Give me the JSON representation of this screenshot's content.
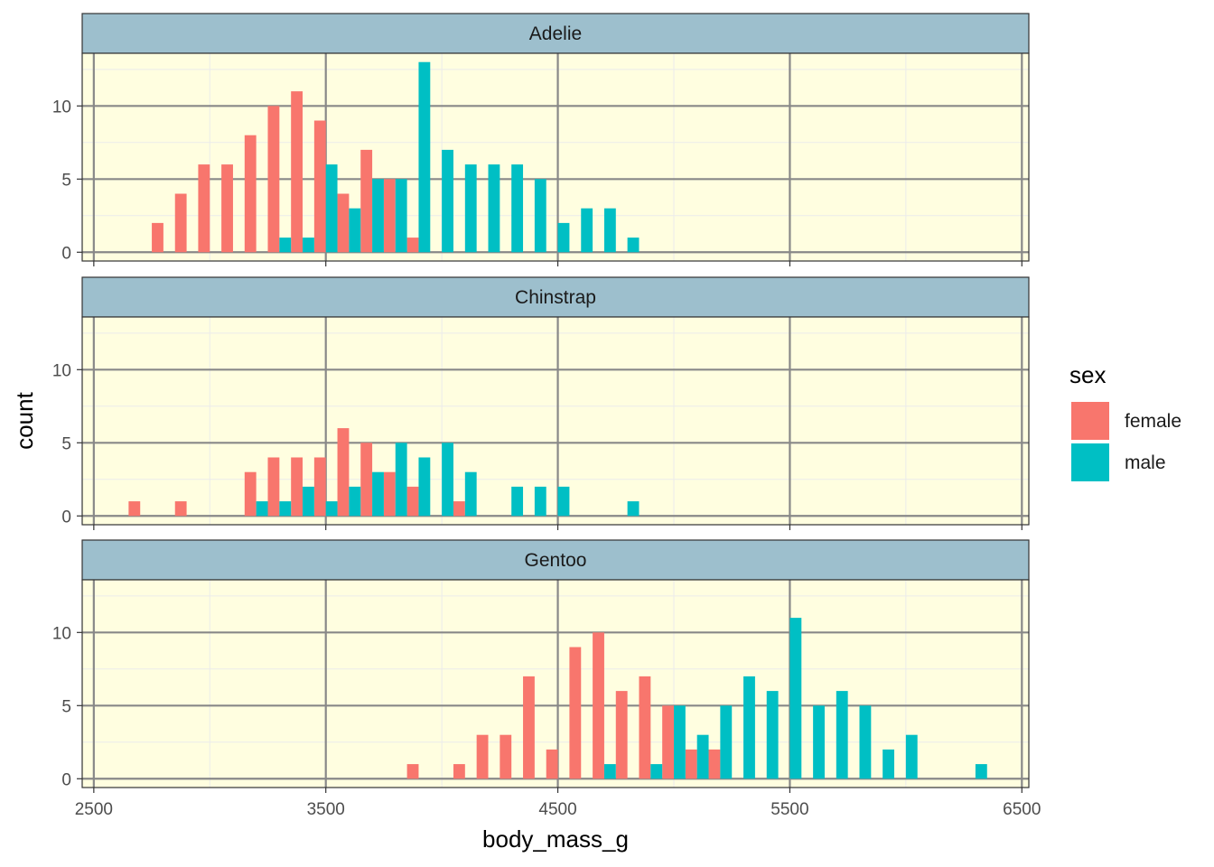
{
  "chart_data": {
    "type": "bar",
    "subtype": "faceted histogram (dodged)",
    "xlabel": "body_mass_g",
    "ylabel": "count",
    "xlim": [
      2450,
      6530
    ],
    "ylim": [
      -0.6,
      13.6
    ],
    "x_ticks": [
      2500,
      3500,
      4500,
      5500,
      6500
    ],
    "x_tick_labels": [
      "2500",
      "3500",
      "4500",
      "5500",
      "6500"
    ],
    "y_ticks": [
      0,
      5,
      10
    ],
    "y_tick_labels": [
      "0",
      "5",
      "10"
    ],
    "bin_width": 100,
    "grid": true,
    "panel_background": "#FFFEE0",
    "strip_background": "#9DBFCD",
    "legend": {
      "title": "sex",
      "position": "right",
      "entries": [
        {
          "name": "female",
          "color": "#F8766D"
        },
        {
          "name": "male",
          "color": "#00BFC4"
        }
      ]
    },
    "facets": [
      {
        "label": "Adelie",
        "series": [
          {
            "name": "female",
            "x": [
              2800,
              2900,
              3000,
              3100,
              3200,
              3300,
              3400,
              3500,
              3600,
              3700,
              3800,
              3900
            ],
            "values": [
              2,
              4,
              6,
              6,
              8,
              10,
              11,
              9,
              4,
              7,
              5,
              1
            ]
          },
          {
            "name": "male",
            "x": [
              3300,
              3400,
              3500,
              3600,
              3700,
              3800,
              3900,
              4000,
              4100,
              4200,
              4300,
              4400,
              4500,
              4600,
              4700,
              4800
            ],
            "values": [
              1,
              1,
              6,
              3,
              5,
              5,
              13,
              7,
              6,
              6,
              6,
              5,
              2,
              3,
              3,
              1
            ]
          }
        ]
      },
      {
        "label": "Chinstrap",
        "series": [
          {
            "name": "female",
            "x": [
              2700,
              2900,
              3200,
              3300,
              3400,
              3500,
              3600,
              3700,
              3800,
              3900,
              4100
            ],
            "values": [
              1,
              1,
              3,
              4,
              4,
              4,
              6,
              5,
              3,
              2,
              1
            ]
          },
          {
            "name": "male",
            "x": [
              3200,
              3300,
              3400,
              3500,
              3600,
              3700,
              3800,
              3900,
              4000,
              4100,
              4300,
              4400,
              4500,
              4800
            ],
            "values": [
              1,
              1,
              2,
              1,
              2,
              3,
              5,
              4,
              5,
              3,
              2,
              2,
              2,
              1
            ]
          }
        ]
      },
      {
        "label": "Gentoo",
        "series": [
          {
            "name": "female",
            "x": [
              3900,
              4100,
              4200,
              4300,
              4400,
              4500,
              4600,
              4700,
              4800,
              4900,
              5000,
              5100,
              5200
            ],
            "values": [
              1,
              1,
              3,
              3,
              7,
              2,
              9,
              10,
              6,
              7,
              5,
              2,
              2
            ]
          },
          {
            "name": "male",
            "x": [
              4700,
              4900,
              5000,
              5100,
              5200,
              5300,
              5400,
              5500,
              5600,
              5700,
              5800,
              5900,
              6000,
              6300
            ],
            "values": [
              1,
              1,
              5,
              3,
              5,
              7,
              6,
              11,
              5,
              6,
              5,
              2,
              3,
              1
            ]
          }
        ]
      }
    ]
  }
}
